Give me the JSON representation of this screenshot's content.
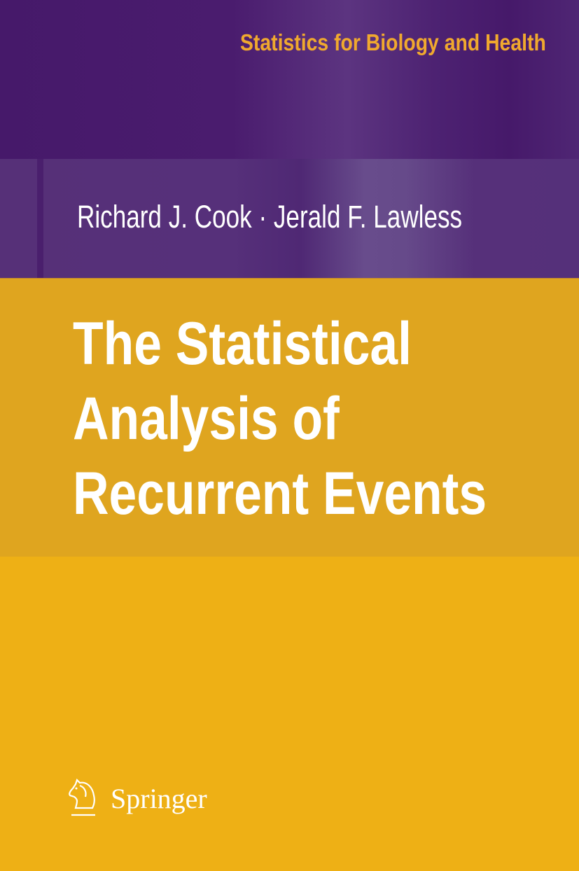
{
  "series": "Statistics for Biology and Health",
  "authors": "Richard J. Cook · Jerald F. Lawless",
  "title_lines": [
    "The Statistical",
    "Analysis of",
    "Recurrent Events"
  ],
  "publisher": {
    "name": "Springer",
    "logo_icon": "knight-horse-icon"
  },
  "colors": {
    "purple": "#46196a",
    "purple_light": "#56307a",
    "gold": "#dfa51f",
    "gold_light": "#eeb015",
    "series_text": "#f0a92e"
  }
}
